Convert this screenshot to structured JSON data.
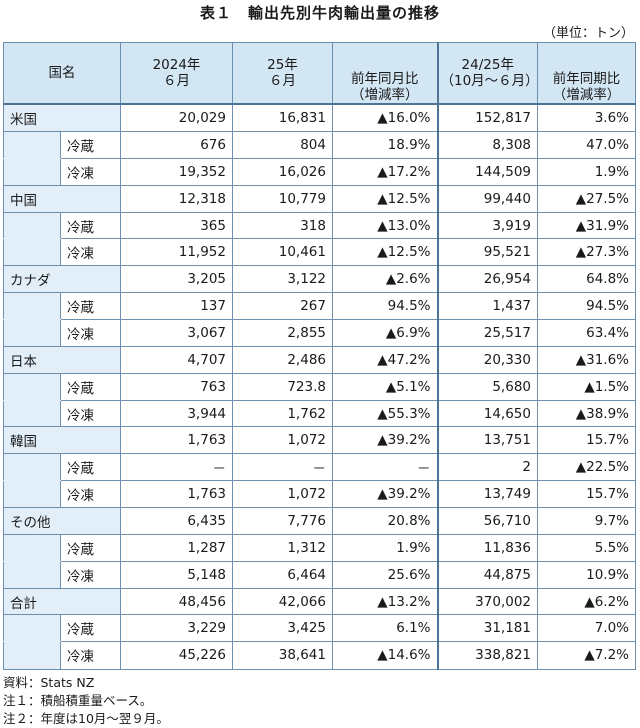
{
  "title": "表１　輸出先別牛肉輸出量の推移",
  "unit": "（単位：トン）",
  "headers": {
    "country": "国名",
    "col1a": "2024年",
    "col1b": "６月",
    "col2a": "25年",
    "col2b": "６月",
    "col3a": "前年同月比",
    "col3b": "（増減率）",
    "col4a": "24/25年",
    "col4b": "（10月～６月）",
    "col5a": "前年同期比",
    "col5b": "（増減率）"
  },
  "rows": [
    {
      "name": "米国",
      "v": [
        "20,029",
        "16,831",
        "▲16.0%",
        "152,817",
        "3.6%"
      ],
      "subs": [
        {
          "name": "冷蔵",
          "v": [
            "676",
            "804",
            "18.9%",
            "8,308",
            "47.0%"
          ]
        },
        {
          "name": "冷凍",
          "v": [
            "19,352",
            "16,026",
            "▲17.2%",
            "144,509",
            "1.9%"
          ]
        }
      ]
    },
    {
      "name": "中国",
      "v": [
        "12,318",
        "10,779",
        "▲12.5%",
        "99,440",
        "▲27.5%"
      ],
      "subs": [
        {
          "name": "冷蔵",
          "v": [
            "365",
            "318",
            "▲13.0%",
            "3,919",
            "▲31.9%"
          ]
        },
        {
          "name": "冷凍",
          "v": [
            "11,952",
            "10,461",
            "▲12.5%",
            "95,521",
            "▲27.3%"
          ]
        }
      ]
    },
    {
      "name": "カナダ",
      "v": [
        "3,205",
        "3,122",
        "▲2.6%",
        "26,954",
        "64.8%"
      ],
      "subs": [
        {
          "name": "冷蔵",
          "v": [
            "137",
            "267",
            "94.5%",
            "1,437",
            "94.5%"
          ]
        },
        {
          "name": "冷凍",
          "v": [
            "3,067",
            "2,855",
            "▲6.9%",
            "25,517",
            "63.4%"
          ]
        }
      ]
    },
    {
      "name": "日本",
      "v": [
        "4,707",
        "2,486",
        "▲47.2%",
        "20,330",
        "▲31.6%"
      ],
      "subs": [
        {
          "name": "冷蔵",
          "v": [
            "763",
            "723.8",
            "▲5.1%",
            "5,680",
            "▲1.5%"
          ]
        },
        {
          "name": "冷凍",
          "v": [
            "3,944",
            "1,762",
            "▲55.3%",
            "14,650",
            "▲38.9%"
          ]
        }
      ]
    },
    {
      "name": "韓国",
      "v": [
        "1,763",
        "1,072",
        "▲39.2%",
        "13,751",
        "15.7%"
      ],
      "subs": [
        {
          "name": "冷蔵",
          "v": [
            "－",
            "－",
            "－",
            "2",
            "▲22.5%"
          ]
        },
        {
          "name": "冷凍",
          "v": [
            "1,763",
            "1,072",
            "▲39.2%",
            "13,749",
            "15.7%"
          ]
        }
      ]
    },
    {
      "name": "その他",
      "v": [
        "6,435",
        "7,776",
        "20.8%",
        "56,710",
        "9.7%"
      ],
      "subs": [
        {
          "name": "冷蔵",
          "v": [
            "1,287",
            "1,312",
            "1.9%",
            "11,836",
            "5.5%"
          ]
        },
        {
          "name": "冷凍",
          "v": [
            "5,148",
            "6,464",
            "25.6%",
            "44,875",
            "10.9%"
          ]
        }
      ]
    },
    {
      "name": "合計",
      "v": [
        "48,456",
        "42,066",
        "▲13.2%",
        "370,002",
        "▲6.2%"
      ],
      "subs": [
        {
          "name": "冷蔵",
          "v": [
            "3,229",
            "3,425",
            "6.1%",
            "31,181",
            "7.0%"
          ]
        },
        {
          "name": "冷凍",
          "v": [
            "45,226",
            "38,641",
            "▲14.6%",
            "338,821",
            "▲7.2%"
          ]
        }
      ]
    }
  ],
  "notes": [
    "資料：Stats NZ",
    "注１：積船積重量ベース。",
    "注２：年度は10月～翌９月。"
  ]
}
